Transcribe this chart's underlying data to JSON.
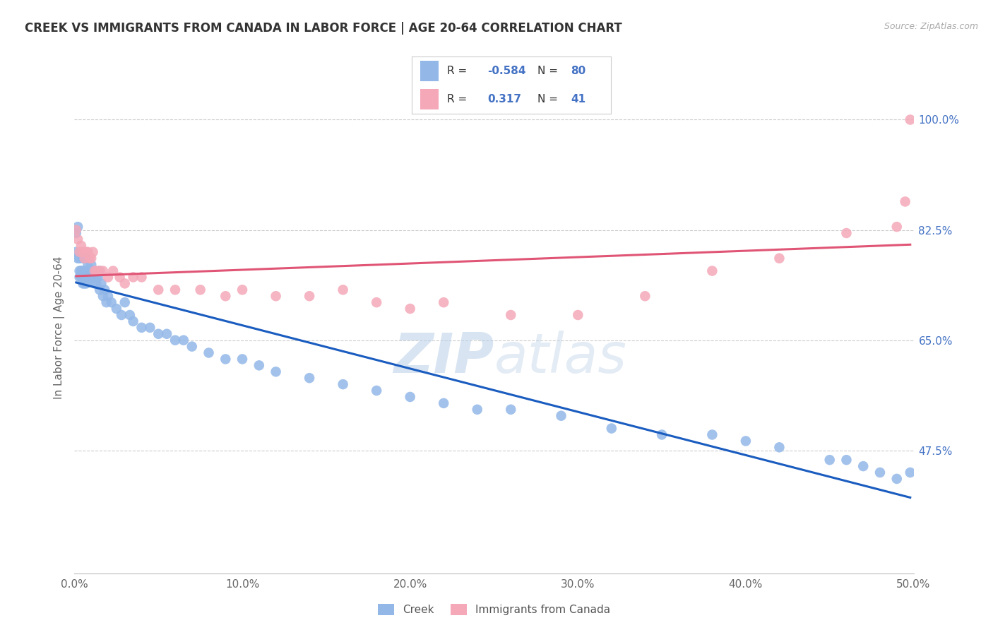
{
  "title": "CREEK VS IMMIGRANTS FROM CANADA IN LABOR FORCE | AGE 20-64 CORRELATION CHART",
  "source": "Source: ZipAtlas.com",
  "ylabel": "In Labor Force | Age 20-64",
  "xlim": [
    0.0,
    0.5
  ],
  "ylim": [
    0.28,
    1.06
  ],
  "xtick_labels": [
    "0.0%",
    "10.0%",
    "20.0%",
    "30.0%",
    "40.0%",
    "50.0%"
  ],
  "xtick_vals": [
    0.0,
    0.1,
    0.2,
    0.3,
    0.4,
    0.5
  ],
  "right_ytick_vals": [
    0.475,
    0.65,
    0.825,
    1.0
  ],
  "right_ytick_labels": [
    "47.5%",
    "65.0%",
    "82.5%",
    "100.0%"
  ],
  "R_creek": -0.584,
  "N_creek": 80,
  "R_canada": 0.317,
  "N_canada": 41,
  "creek_color": "#93b8e8",
  "canada_color": "#f4a8b8",
  "creek_line_color": "#1a5cbf",
  "canada_line_color": "#e05575",
  "watermark_zip": "ZIP",
  "watermark_atlas": "atlas",
  "creek_x": [
    0.001,
    0.001,
    0.002,
    0.002,
    0.003,
    0.003,
    0.003,
    0.004,
    0.004,
    0.004,
    0.005,
    0.005,
    0.005,
    0.005,
    0.006,
    0.006,
    0.006,
    0.007,
    0.007,
    0.007,
    0.007,
    0.008,
    0.008,
    0.008,
    0.009,
    0.009,
    0.01,
    0.01,
    0.01,
    0.011,
    0.011,
    0.012,
    0.012,
    0.013,
    0.013,
    0.014,
    0.015,
    0.015,
    0.016,
    0.017,
    0.018,
    0.019,
    0.02,
    0.022,
    0.025,
    0.028,
    0.03,
    0.033,
    0.035,
    0.04,
    0.045,
    0.05,
    0.055,
    0.06,
    0.065,
    0.07,
    0.08,
    0.09,
    0.1,
    0.11,
    0.12,
    0.14,
    0.16,
    0.18,
    0.2,
    0.22,
    0.24,
    0.26,
    0.29,
    0.32,
    0.35,
    0.38,
    0.4,
    0.42,
    0.45,
    0.46,
    0.47,
    0.48,
    0.49,
    0.498
  ],
  "creek_y": [
    0.82,
    0.79,
    0.83,
    0.78,
    0.78,
    0.76,
    0.75,
    0.76,
    0.75,
    0.76,
    0.78,
    0.76,
    0.75,
    0.74,
    0.76,
    0.75,
    0.74,
    0.78,
    0.76,
    0.75,
    0.74,
    0.77,
    0.76,
    0.75,
    0.76,
    0.75,
    0.77,
    0.76,
    0.75,
    0.76,
    0.75,
    0.76,
    0.74,
    0.75,
    0.74,
    0.75,
    0.76,
    0.73,
    0.74,
    0.72,
    0.73,
    0.71,
    0.72,
    0.71,
    0.7,
    0.69,
    0.71,
    0.69,
    0.68,
    0.67,
    0.67,
    0.66,
    0.66,
    0.65,
    0.65,
    0.64,
    0.63,
    0.62,
    0.62,
    0.61,
    0.6,
    0.59,
    0.58,
    0.57,
    0.56,
    0.55,
    0.54,
    0.54,
    0.53,
    0.51,
    0.5,
    0.5,
    0.49,
    0.48,
    0.46,
    0.46,
    0.45,
    0.44,
    0.43,
    0.44
  ],
  "canada_x": [
    0.001,
    0.002,
    0.003,
    0.004,
    0.005,
    0.006,
    0.007,
    0.008,
    0.009,
    0.01,
    0.011,
    0.012,
    0.013,
    0.015,
    0.017,
    0.02,
    0.023,
    0.027,
    0.03,
    0.035,
    0.04,
    0.05,
    0.06,
    0.075,
    0.09,
    0.1,
    0.12,
    0.14,
    0.16,
    0.18,
    0.2,
    0.22,
    0.26,
    0.3,
    0.34,
    0.38,
    0.42,
    0.46,
    0.49,
    0.495,
    0.498
  ],
  "canada_y": [
    0.825,
    0.81,
    0.79,
    0.8,
    0.79,
    0.78,
    0.79,
    0.79,
    0.78,
    0.78,
    0.79,
    0.76,
    0.76,
    0.76,
    0.76,
    0.75,
    0.76,
    0.75,
    0.74,
    0.75,
    0.75,
    0.73,
    0.73,
    0.73,
    0.72,
    0.73,
    0.72,
    0.72,
    0.73,
    0.71,
    0.7,
    0.71,
    0.69,
    0.69,
    0.72,
    0.76,
    0.78,
    0.82,
    0.83,
    0.87,
    1.0
  ]
}
